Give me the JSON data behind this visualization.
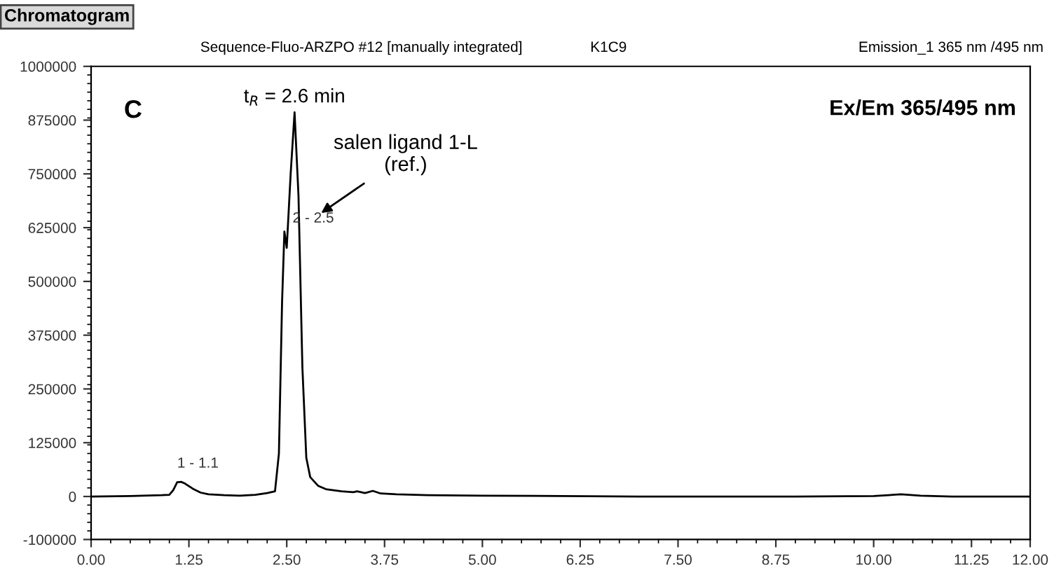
{
  "chart_data": {
    "type": "line",
    "title": "Chromatogram",
    "subtitle": "Sequence-Fluo-ARZPO #12 [manually integrated]",
    "annotations": [
      "K1C9",
      "Emission_1 365 nm /495 nm",
      "C",
      "Ex/Em 365/495 nm",
      {
        "text": "t$_{R}$ = 2.6 min",
        "x": 2.6,
        "y": 893000
      },
      "salen ligand 1-L\n(ref.)",
      {
        "text": "1 - 1.1",
        "x": 1.1,
        "y": 33000
      },
      {
        "text": "2 - 2.5",
        "x": 2.5,
        "y": 630000
      }
    ],
    "x": [
      0,
      0.5,
      0.9,
      1.0,
      1.05,
      1.1,
      1.15,
      1.2,
      1.3,
      1.4,
      1.5,
      1.7,
      1.9,
      2.1,
      2.25,
      2.35,
      2.4,
      2.44,
      2.47,
      2.5,
      2.55,
      2.6,
      2.65,
      2.7,
      2.75,
      2.8,
      2.9,
      3.0,
      3.2,
      3.35,
      3.4,
      3.5,
      3.6,
      3.7,
      3.9,
      4.3,
      5,
      6,
      7,
      8,
      9,
      10,
      10.35,
      10.6,
      11,
      12
    ],
    "series": [
      {
        "color": "#000000",
        "values": [
          0,
          1000,
          3000,
          4000,
          15000,
          33000,
          34000,
          30000,
          18000,
          9000,
          5000,
          3000,
          2000,
          4000,
          8000,
          12000,
          100000,
          450000,
          616000,
          578000,
          750000,
          893000,
          700000,
          300000,
          90000,
          45000,
          25000,
          17000,
          12000,
          10000,
          12000,
          8000,
          13000,
          7000,
          5000,
          3000,
          2000,
          1000,
          0,
          0,
          0,
          1000,
          5000,
          2000,
          0,
          0
        ]
      }
    ],
    "xlim": [
      0,
      12
    ],
    "xticks": [
      {
        "value": 0,
        "label": "0.00"
      },
      {
        "value": 1.25,
        "label": "1.25"
      },
      {
        "value": 2.5,
        "label": "2.50"
      },
      {
        "value": 3.75,
        "label": "3.75"
      },
      {
        "value": 5,
        "label": "5.00"
      },
      {
        "value": 6.25,
        "label": "6.25"
      },
      {
        "value": 7.5,
        "label": "7.50"
      },
      {
        "value": 8.75,
        "label": "8.75"
      },
      {
        "value": 10,
        "label": "10.00"
      },
      {
        "value": 11.25,
        "label": "11.25"
      },
      {
        "value": 12,
        "label": "12.00"
      }
    ],
    "ylim": [
      -100000,
      1000000
    ],
    "yticks": [
      -100000,
      0,
      125000,
      250000,
      375000,
      500000,
      625000,
      750000,
      875000,
      1000000
    ],
    "grid": false,
    "legend": false,
    "marker": "none",
    "line_style": "solid"
  }
}
